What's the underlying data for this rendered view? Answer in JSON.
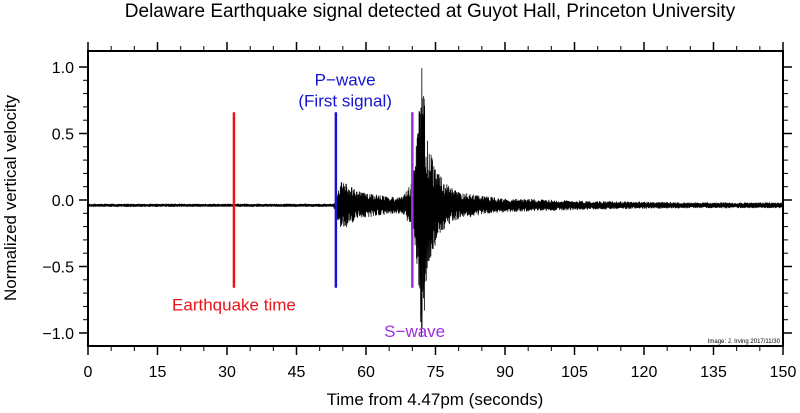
{
  "chart_data": {
    "type": "line",
    "title": "Delaware Earthquake signal detected at Guyot Hall, Princeton University",
    "xlabel": "Time from 4.47pm (seconds)",
    "ylabel": "Normalized vertical velocity",
    "xlim": [
      0,
      150
    ],
    "ylim": [
      -1.1,
      1.1
    ],
    "xticks": [
      0,
      15,
      30,
      45,
      60,
      75,
      90,
      105,
      120,
      135,
      150
    ],
    "yticks": [
      1.0,
      0.5,
      0.0,
      -0.5,
      -1.0
    ],
    "ytick_labels": [
      "1.0",
      "0.5",
      "0.0",
      "−0.5",
      "−1.0"
    ],
    "grid": false,
    "signal": {
      "baseline": -0.04,
      "x": [
        0,
        50,
        53,
        54,
        55,
        56,
        58,
        60,
        62,
        64,
        66,
        68,
        69.5,
        70.5,
        71.5,
        72,
        72.5,
        73,
        73.5,
        74,
        75,
        76,
        78,
        80,
        85,
        90,
        95,
        100,
        105,
        110,
        120,
        130,
        140,
        150
      ],
      "envelope": [
        0.01,
        0.01,
        0.01,
        0.12,
        0.2,
        0.16,
        0.11,
        0.09,
        0.08,
        0.07,
        0.06,
        0.07,
        0.15,
        0.28,
        0.75,
        1.0,
        0.85,
        0.6,
        0.45,
        0.4,
        0.3,
        0.22,
        0.14,
        0.1,
        0.07,
        0.05,
        0.045,
        0.04,
        0.035,
        0.03,
        0.025,
        0.02,
        0.02,
        0.02
      ],
      "peak_max": 0.99,
      "peak_min": -0.97
    },
    "markers": [
      {
        "name": "Earthquake time",
        "x": 31.5,
        "y_range": [
          -0.66,
          0.66
        ],
        "color": "#e8151b",
        "label_lines": [
          "Earthquake time"
        ],
        "label_x": 31.5,
        "label_y": -0.83
      },
      {
        "name": "P-wave",
        "x": 53.5,
        "y_range": [
          -0.66,
          0.66
        ],
        "color": "#1414d2",
        "label_lines": [
          "P−wave",
          "(First signal)"
        ],
        "label_x": 55.5,
        "label_y": 0.86
      },
      {
        "name": "S-wave",
        "x": 70.0,
        "y_range": [
          -0.66,
          0.66
        ],
        "color": "#9b30e0",
        "label_lines": [
          "S−wave"
        ],
        "label_x": 70.5,
        "label_y": -1.03
      }
    ],
    "credit": "Image: J. Irving 2017/11/30"
  }
}
